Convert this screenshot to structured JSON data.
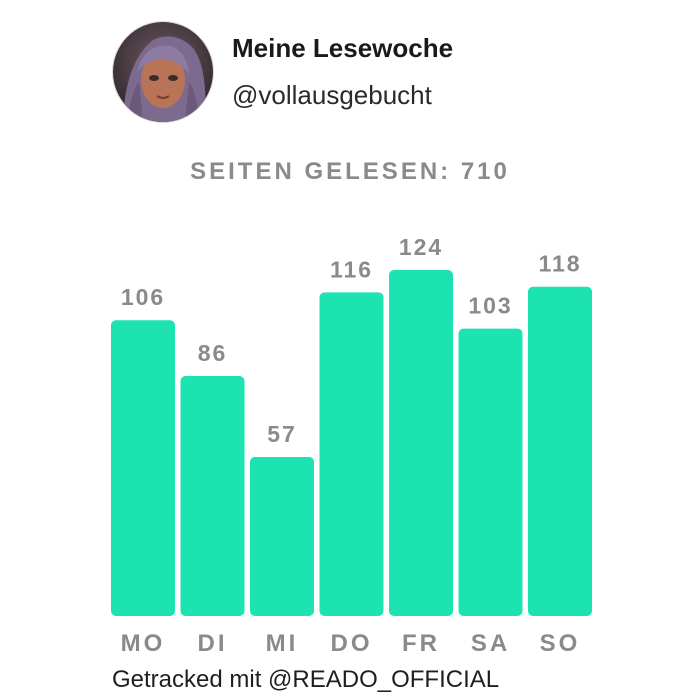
{
  "profile": {
    "title": "Meine Lesewoche",
    "handle": "@vollausgebucht"
  },
  "summary": {
    "label": "SEITEN GELESEN:",
    "value": "710"
  },
  "chart_data": {
    "type": "bar",
    "categories": [
      "MO",
      "DI",
      "MI",
      "DO",
      "FR",
      "SA",
      "SO"
    ],
    "values": [
      106,
      86,
      57,
      116,
      124,
      103,
      118
    ],
    "bar_color": "#1de3b1",
    "label_color": "#8a8a8a",
    "grid": false,
    "ylim": [
      0,
      124
    ]
  },
  "footer": {
    "text": "Getracked mit @READO_OFFICIAL"
  }
}
